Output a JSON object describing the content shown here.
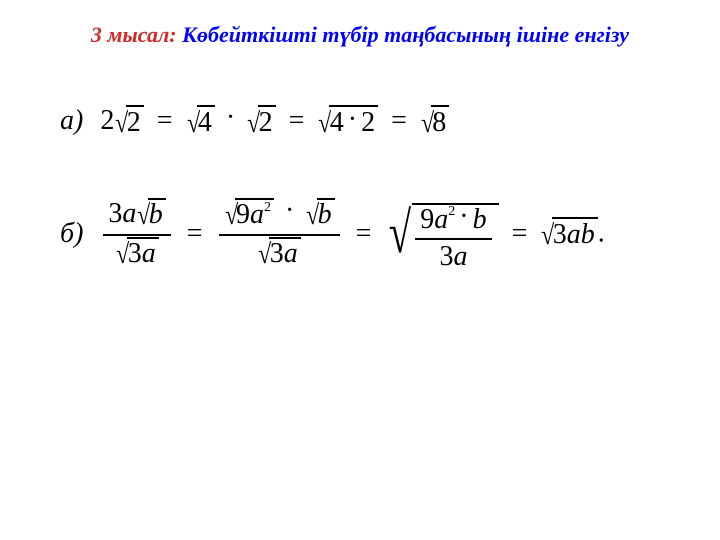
{
  "title": {
    "red_part": "3 мысал:",
    "blue_part": "Көбейткішті түбір таңбасының ішіне енгізу"
  },
  "line_a": {
    "label": "а)",
    "coef1": "2",
    "rad1": "2",
    "rad2": "4",
    "rad3": "2",
    "rad4_a": "4",
    "rad4_dot": "·",
    "rad4_b": "2",
    "rad5": "8"
  },
  "line_b": {
    "label": "б)",
    "f1_num_coef": "3",
    "f1_num_var": "a",
    "f1_num_rad": "b",
    "f1_den_rad_coef": "3",
    "f1_den_rad_var": "a",
    "f2_num_rad_coef": "9",
    "f2_num_rad_var": "a",
    "f2_num_rad_exp": "2",
    "f2_num_rad2": "b",
    "f2_den_rad_coef": "3",
    "f2_den_rad_var": "a",
    "f3_num_coef": "9",
    "f3_num_var": "a",
    "f3_num_exp": "2",
    "f3_num_dot": "·",
    "f3_num_b": "b",
    "f3_den_coef": "3",
    "f3_den_var": "a",
    "res_coef": "3",
    "res_vars": "ab",
    "period": "."
  },
  "colors": {
    "red": "#CF2A28",
    "blue": "#0000FF",
    "black": "#000000",
    "bg": "#ffffff"
  }
}
